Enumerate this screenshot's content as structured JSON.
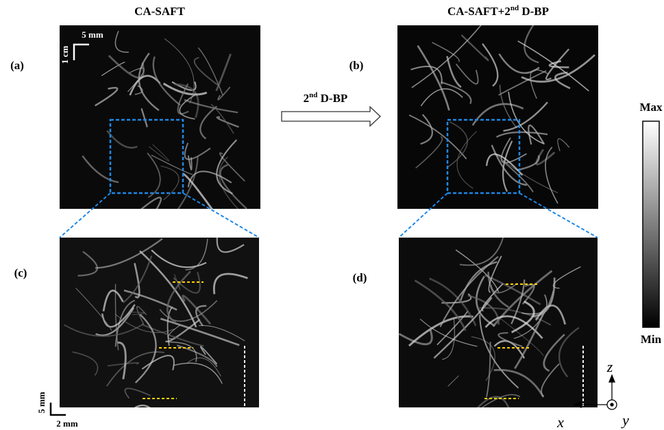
{
  "titles": {
    "a": "CA-SAFT",
    "b": {
      "text": "CA-SAFT+2",
      "sup": "nd",
      "tail": " D-BP"
    }
  },
  "panel_labels": [
    "(a)",
    "(b)",
    "(c)",
    "(d)"
  ],
  "scale_bars": {
    "top_horizontal": "5 mm",
    "top_vertical": "1 cm",
    "bottom_vertical": "5 mm",
    "bottom_horizontal": "2 mm"
  },
  "arrow_label": {
    "text": "2",
    "sup": "nd",
    "tail": " D-BP"
  },
  "colorbar": {
    "max": "Max",
    "min": "Min"
  },
  "axes": {
    "z": "z",
    "x": "x",
    "y": "y"
  }
}
